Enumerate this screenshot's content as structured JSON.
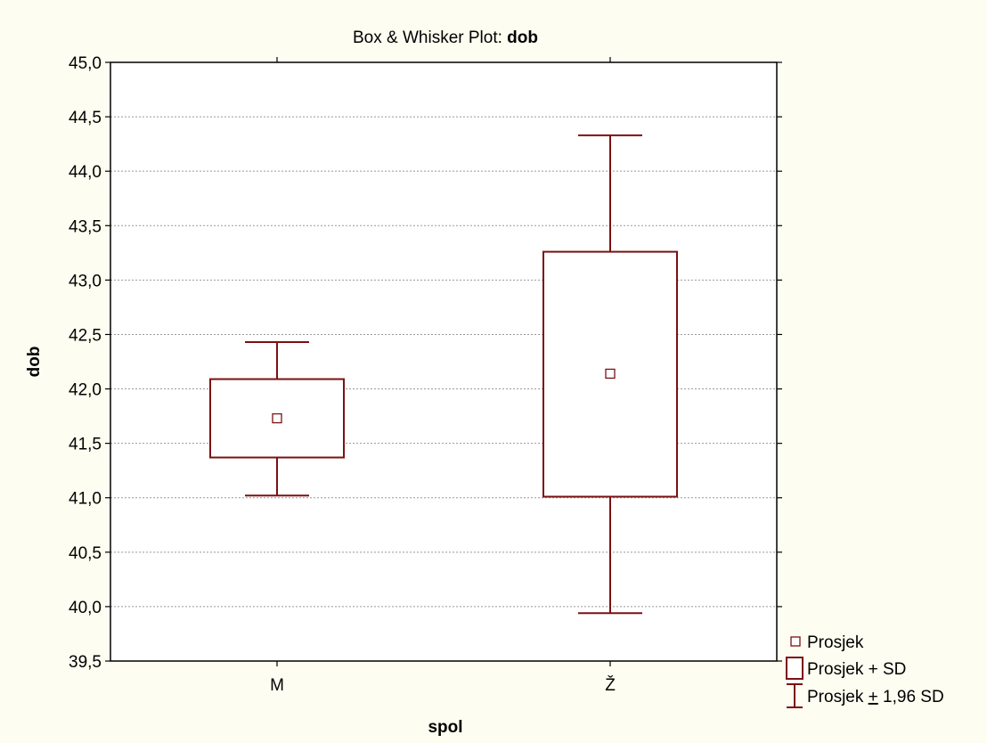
{
  "chart_data": {
    "type": "box",
    "title_prefix": "Box & Whisker Plot: ",
    "title_variable": "dob",
    "xlabel": "spol",
    "ylabel": "dob",
    "ylim": [
      39.5,
      45.0
    ],
    "yticks": [
      "39,5",
      "40,0",
      "40,5",
      "41,0",
      "41,5",
      "42,0",
      "42,5",
      "43,0",
      "43,5",
      "44,0",
      "44,5",
      "45,0"
    ],
    "ytick_values": [
      39.5,
      40.0,
      40.5,
      41.0,
      41.5,
      42.0,
      42.5,
      43.0,
      43.5,
      44.0,
      44.5,
      45.0
    ],
    "categories": [
      "M",
      "Ž"
    ],
    "groups": [
      {
        "category": "M",
        "mean": 41.73,
        "sd_low": 41.37,
        "sd_high": 42.09,
        "ci_low": 41.02,
        "ci_high": 42.43
      },
      {
        "category": "Ž",
        "mean": 42.14,
        "sd_low": 41.01,
        "sd_high": 43.26,
        "ci_low": 39.94,
        "ci_high": 44.33
      }
    ],
    "grid": true,
    "legend": {
      "placement": "bottom-right",
      "items": [
        {
          "key": "mean",
          "label": "Prosjek"
        },
        {
          "key": "box",
          "label": "Prosjek + SD"
        },
        {
          "key": "whisker",
          "label_prefix": "Prosjek ",
          "label_symbol": "+",
          "label_suffix": " 1,96 SD"
        }
      ]
    },
    "colors": {
      "box": "#7b1113",
      "grid": "#999999",
      "axis": "#000000",
      "background": "#fdfdf1",
      "plot": "#ffffff"
    }
  }
}
